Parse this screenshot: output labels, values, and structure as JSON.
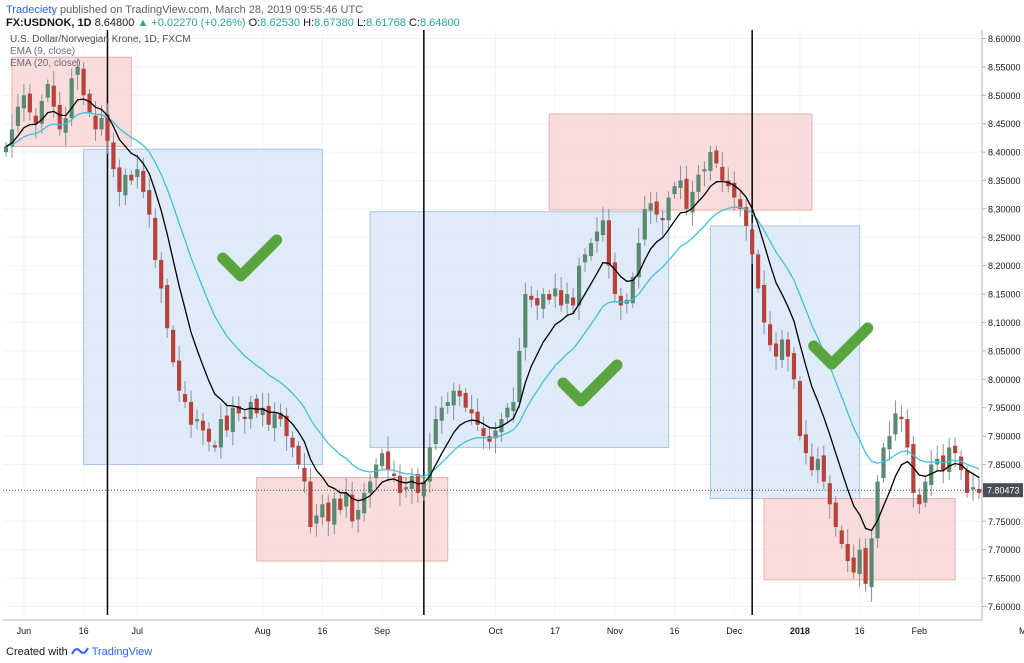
{
  "header": {
    "user": "Tradeciety",
    "published": "published on TradingView.com, March 28, 2019 09:55:46 UTC",
    "symbol": "FX:USDNOK, 1D",
    "last": "8.64800",
    "change": "+0.02270 (+0.26%)",
    "o_label": "O:",
    "o": "8.62530",
    "h_label": "H:",
    "h": "8.67380",
    "l_label": "L:",
    "l": "8.61768",
    "c_label": "C:",
    "c": "8.64800"
  },
  "legend": {
    "title": "U.S. Dollar/Norwegian Krone, 1D, FXCM",
    "ema9": "EMA (9, close)",
    "ema20": "EMA (20, close)"
  },
  "footer": {
    "created": "Created with",
    "brand": "TradingView"
  },
  "colors": {
    "up": "#5b8a72",
    "down": "#b8413a",
    "ema9": "#000000",
    "ema20": "#41c1d6",
    "blue_box": "#d6e4f7",
    "red_box": "#f8d6d6",
    "check": "#5aa43f",
    "price_tag": "#4a4d58"
  },
  "icons": {
    "check": "check-icon",
    "tv_logo": "tradingview-logo-icon"
  },
  "chart_data": {
    "type": "candlestick",
    "x_tick_labels": [
      "Jun",
      "16",
      "Jul",
      "Aug",
      "16",
      "Sep",
      "Oct",
      "17",
      "Nov",
      "16",
      "Dec",
      "2018",
      "16",
      "Feb",
      "Mar"
    ],
    "y_tick_labels": [
      "8.60000",
      "8.55000",
      "8.50000",
      "8.45000",
      "8.40000",
      "8.35000",
      "8.30000",
      "8.25000",
      "8.20000",
      "8.15000",
      "8.10000",
      "8.05000",
      "8.00000",
      "7.95000",
      "7.90000",
      "7.85000",
      "7.80000",
      "7.75000",
      "7.70000",
      "7.65000",
      "7.60000"
    ],
    "ylim": [
      7.585,
      8.615
    ],
    "last_price_label": "7.80473",
    "last_price": 7.80473,
    "vertical_lines_bar_index": [
      17,
      70,
      125
    ],
    "blue_boxes": [
      {
        "x0": 13,
        "x1": 53,
        "y0": 7.85,
        "y1": 8.405
      },
      {
        "x0": 61,
        "x1": 111,
        "y0": 7.88,
        "y1": 8.295
      },
      {
        "x0": 118,
        "x1": 143,
        "y0": 7.79,
        "y1": 8.27
      }
    ],
    "red_boxes": [
      {
        "x0": 1,
        "x1": 21,
        "y0": 8.41,
        "y1": 8.567
      },
      {
        "x0": 42,
        "x1": 74,
        "y0": 7.68,
        "y1": 7.827
      },
      {
        "x0": 91,
        "x1": 135,
        "y0": 8.298,
        "y1": 8.467
      },
      {
        "x0": 127,
        "x1": 159,
        "y0": 7.647,
        "y1": 7.79
      }
    ],
    "checkmarks": [
      {
        "bar": 41,
        "price": 8.21
      },
      {
        "bar": 98,
        "price": 7.99
      },
      {
        "bar": 140,
        "price": 8.055
      }
    ],
    "closes": [
      8.41,
      8.44,
      8.48,
      8.5,
      8.47,
      8.45,
      8.49,
      8.52,
      8.48,
      8.44,
      8.46,
      8.53,
      8.55,
      8.5,
      8.47,
      8.44,
      8.46,
      8.42,
      8.37,
      8.33,
      8.36,
      8.35,
      8.37,
      8.33,
      8.29,
      8.21,
      8.16,
      8.09,
      8.03,
      7.98,
      7.96,
      7.92,
      7.93,
      7.91,
      7.89,
      7.88,
      7.93,
      7.91,
      7.95,
      7.94,
      7.93,
      7.96,
      7.94,
      7.95,
      7.92,
      7.94,
      7.93,
      7.9,
      7.88,
      7.85,
      7.82,
      7.74,
      7.76,
      7.78,
      7.75,
      7.79,
      7.77,
      7.8,
      7.75,
      7.77,
      7.8,
      7.82,
      7.85,
      7.87,
      7.84,
      7.83,
      7.8,
      7.81,
      7.83,
      7.8,
      7.82,
      7.88,
      7.93,
      7.95,
      7.96,
      7.98,
      7.97,
      7.95,
      7.94,
      7.92,
      7.9,
      7.89,
      7.91,
      7.93,
      7.95,
      7.96,
      8.05,
      8.15,
      8.14,
      8.13,
      8.15,
      8.14,
      8.16,
      8.13,
      8.15,
      8.13,
      8.2,
      8.22,
      8.24,
      8.26,
      8.28,
      8.2,
      8.15,
      8.13,
      8.14,
      8.18,
      8.24,
      8.3,
      8.31,
      8.29,
      8.28,
      8.32,
      8.34,
      8.35,
      8.3,
      8.33,
      8.36,
      8.37,
      8.4,
      8.38,
      8.35,
      8.34,
      8.32,
      8.3,
      8.27,
      8.22,
      8.16,
      8.1,
      8.06,
      8.04,
      8.07,
      8.04,
      8.0,
      7.9,
      7.87,
      7.84,
      7.86,
      7.82,
      7.78,
      7.74,
      7.71,
      7.68,
      7.66,
      7.7,
      7.64,
      7.72,
      7.82,
      7.88,
      7.9,
      7.94,
      7.93,
      7.88,
      7.8,
      7.78,
      7.82,
      7.85,
      7.86,
      7.84,
      7.88,
      7.87,
      7.84,
      7.8,
      7.81,
      7.8
    ]
  }
}
